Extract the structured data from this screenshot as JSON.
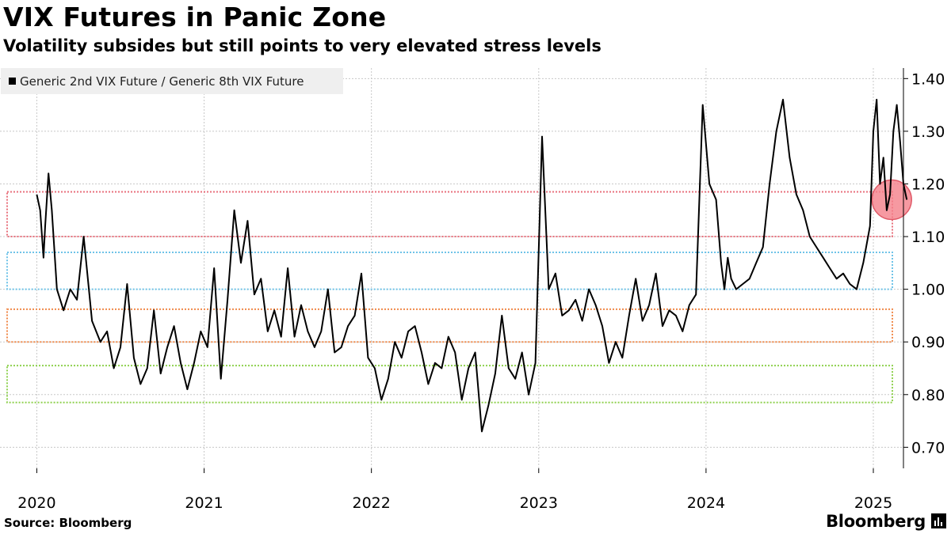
{
  "title": "VIX Futures in Panic Zone",
  "subtitle": "Volatility subsides but still points to very elevated stress levels",
  "source": "Source: Bloomberg",
  "brand": "Bloomberg",
  "chart_data": {
    "type": "line",
    "series": [
      {
        "name": "Generic 2nd VIX Future / Generic 8th VIX Future",
        "color": "#000000",
        "x": [
          2020.0,
          2020.02,
          2020.04,
          2020.05,
          2020.07,
          2020.09,
          2020.12,
          2020.16,
          2020.2,
          2020.24,
          2020.28,
          2020.33,
          2020.38,
          2020.42,
          2020.46,
          2020.5,
          2020.54,
          2020.58,
          2020.62,
          2020.66,
          2020.7,
          2020.74,
          2020.78,
          2020.82,
          2020.86,
          2020.9,
          2020.94,
          2020.98,
          2021.02,
          2021.06,
          2021.1,
          2021.14,
          2021.18,
          2021.22,
          2021.26,
          2021.3,
          2021.34,
          2021.38,
          2021.42,
          2021.46,
          2021.5,
          2021.54,
          2021.58,
          2021.62,
          2021.66,
          2021.7,
          2021.74,
          2021.78,
          2021.82,
          2021.86,
          2021.9,
          2021.94,
          2021.98,
          2022.02,
          2022.06,
          2022.1,
          2022.14,
          2022.18,
          2022.22,
          2022.26,
          2022.3,
          2022.34,
          2022.38,
          2022.42,
          2022.46,
          2022.5,
          2022.54,
          2022.58,
          2022.62,
          2022.66,
          2022.7,
          2022.74,
          2022.78,
          2022.82,
          2022.86,
          2022.9,
          2022.94,
          2022.98,
          2023.02,
          2023.06,
          2023.1,
          2023.14,
          2023.18,
          2023.22,
          2023.26,
          2023.3,
          2023.34,
          2023.38,
          2023.42,
          2023.46,
          2023.5,
          2023.54,
          2023.58,
          2023.62,
          2023.66,
          2023.7,
          2023.74,
          2023.78,
          2023.82,
          2023.86,
          2023.9,
          2023.94,
          2023.98,
          2024.02,
          2024.06,
          2024.09,
          2024.11,
          2024.13,
          2024.15,
          2024.18,
          2024.22,
          2024.26,
          2024.3,
          2024.34,
          2024.38,
          2024.42,
          2024.46,
          2024.5,
          2024.54,
          2024.58,
          2024.62,
          2024.66,
          2024.7,
          2024.74,
          2024.78,
          2024.82,
          2024.86,
          2024.9,
          2024.94,
          2024.98,
          2025.0,
          2025.02,
          2025.04,
          2025.06,
          2025.08,
          2025.1,
          2025.12,
          2025.14,
          2025.16,
          2025.18,
          2025.2
        ],
        "values": [
          1.18,
          1.15,
          1.06,
          1.12,
          1.22,
          1.15,
          1.0,
          0.96,
          1.0,
          0.98,
          1.1,
          0.94,
          0.9,
          0.92,
          0.85,
          0.89,
          1.01,
          0.87,
          0.82,
          0.85,
          0.96,
          0.84,
          0.89,
          0.93,
          0.86,
          0.81,
          0.86,
          0.92,
          0.89,
          1.04,
          0.83,
          0.98,
          1.15,
          1.05,
          1.13,
          0.99,
          1.02,
          0.92,
          0.96,
          0.91,
          1.04,
          0.91,
          0.97,
          0.92,
          0.89,
          0.92,
          1.0,
          0.88,
          0.89,
          0.93,
          0.95,
          1.03,
          0.87,
          0.85,
          0.79,
          0.83,
          0.9,
          0.87,
          0.92,
          0.93,
          0.88,
          0.82,
          0.86,
          0.85,
          0.91,
          0.88,
          0.79,
          0.85,
          0.88,
          0.73,
          0.78,
          0.84,
          0.95,
          0.85,
          0.83,
          0.88,
          0.8,
          0.86,
          1.29,
          1.0,
          1.03,
          0.95,
          0.96,
          0.98,
          0.94,
          1.0,
          0.97,
          0.93,
          0.86,
          0.9,
          0.87,
          0.95,
          1.02,
          0.94,
          0.97,
          1.03,
          0.93,
          0.96,
          0.95,
          0.92,
          0.97,
          0.99,
          1.35,
          1.2,
          1.17,
          1.05,
          1.0,
          1.06,
          1.02,
          1.0,
          1.01,
          1.02,
          1.05,
          1.08,
          1.2,
          1.3,
          1.36,
          1.25,
          1.18,
          1.15,
          1.1,
          1.08,
          1.06,
          1.04,
          1.02,
          1.03,
          1.01,
          1.0,
          1.05,
          1.12,
          1.3,
          1.36,
          1.2,
          1.25,
          1.15,
          1.18,
          1.3,
          1.35,
          1.28,
          1.2,
          1.17
        ]
      }
    ],
    "xlabel": "",
    "ylabel": "",
    "xlim": [
      2019.78,
      2025.18
    ],
    "ylim": [
      0.66,
      1.42
    ],
    "xticks": [
      {
        "value": 2020.0,
        "label": "2020"
      },
      {
        "value": 2021.0,
        "label": "2021"
      },
      {
        "value": 2022.0,
        "label": "2022"
      },
      {
        "value": 2023.0,
        "label": "2023"
      },
      {
        "value": 2024.0,
        "label": "2024"
      },
      {
        "value": 2025.0,
        "label": "2025"
      }
    ],
    "yticks": [
      {
        "value": 0.7,
        "label": "0.70"
      },
      {
        "value": 0.8,
        "label": "0.80"
      },
      {
        "value": 0.9,
        "label": "0.90"
      },
      {
        "value": 1.0,
        "label": "1.00"
      },
      {
        "value": 1.1,
        "label": "1.10"
      },
      {
        "value": 1.2,
        "label": "1.20"
      },
      {
        "value": 1.3,
        "label": "1.30"
      },
      {
        "value": 1.4,
        "label": "1.40"
      }
    ],
    "grid": true,
    "legend_position": "top-left",
    "bands": [
      {
        "name": "red-band",
        "low": 1.1,
        "high": 1.185,
        "color": "#e8707c"
      },
      {
        "name": "blue-band",
        "low": 1.0,
        "high": 1.07,
        "color": "#6fc3e8"
      },
      {
        "name": "orange-band",
        "low": 0.9,
        "high": 0.962,
        "color": "#f08a4b"
      },
      {
        "name": "green-band",
        "low": 0.785,
        "high": 0.855,
        "color": "#8fd14f"
      }
    ],
    "highlight": {
      "x": 2025.11,
      "value": 1.17,
      "color": "#f47f8a"
    }
  }
}
